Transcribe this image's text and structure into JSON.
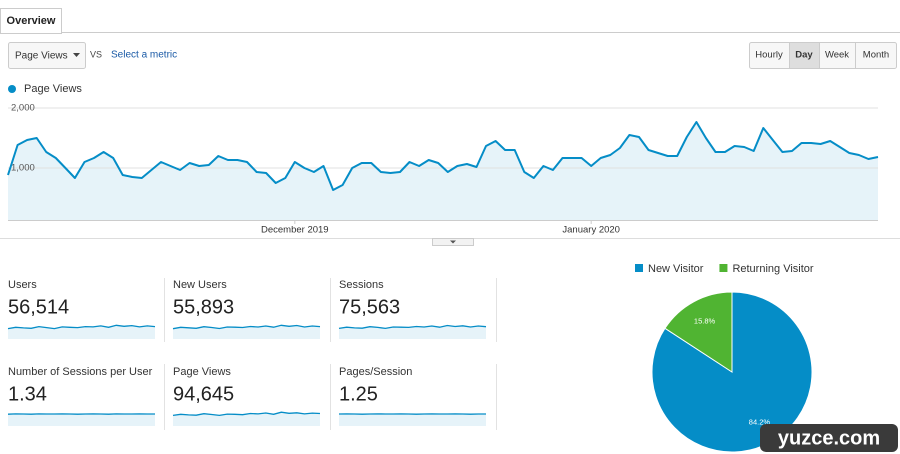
{
  "tab": "Overview",
  "controls": {
    "metric": "Page Views",
    "vs": "VS",
    "select_metric": "Select a metric",
    "periods": [
      "Hourly",
      "Day",
      "Week",
      "Month"
    ]
  },
  "chart_data": [
    {
      "type": "line",
      "series": [
        {
          "name": "Page Views",
          "color": "#058dc7",
          "values": [
            883,
            1383,
            1467,
            1500,
            1267,
            1167,
            1000,
            833,
            1100,
            1167,
            1267,
            1167,
            883,
            850,
            833,
            967,
            1100,
            1033,
            967,
            1083,
            1033,
            1050,
            1200,
            1133,
            1133,
            1100,
            933,
            917,
            750,
            833,
            1100,
            1000,
            933,
            1033,
            633,
            717,
            1000,
            1083,
            1083,
            933,
            917,
            933,
            1100,
            1033,
            1133,
            1083,
            933,
            1033,
            1067,
            1017,
            1367,
            1450,
            1300,
            1300,
            933,
            833,
            1033,
            967,
            1167,
            1167,
            1167,
            1033,
            1167,
            1217,
            1333,
            1550,
            1517,
            1300,
            1250,
            1200,
            1200,
            1517,
            1767,
            1500,
            1267,
            1267,
            1367,
            1350,
            1283,
            1667,
            1467,
            1267,
            1283,
            1417,
            1417,
            1400,
            1450,
            1350,
            1250,
            1217,
            1150,
            1183
          ]
        }
      ],
      "categories": [
        null,
        null,
        null,
        null,
        null,
        null,
        null,
        null,
        null,
        null,
        null,
        null,
        null,
        null,
        null,
        null,
        null,
        null,
        null,
        null,
        null,
        null,
        null,
        null,
        null,
        null,
        null,
        null,
        null,
        null,
        "December 2019",
        null,
        null,
        null,
        null,
        null,
        null,
        null,
        null,
        null,
        null,
        null,
        null,
        null,
        null,
        null,
        null,
        null,
        null,
        null,
        null,
        null,
        null,
        null,
        null,
        null,
        null,
        null,
        null,
        null,
        null,
        "January 2020",
        null,
        null,
        null,
        null,
        null,
        null,
        null,
        null,
        null,
        null,
        null,
        null,
        null,
        null,
        null,
        null,
        null,
        null,
        null,
        null,
        null,
        null,
        null,
        null,
        null,
        null,
        null,
        null,
        null,
        null
      ],
      "ylim": [
        133,
        2133
      ],
      "yticks": [
        {
          "value": 1000,
          "label": "1,000"
        },
        {
          "value": 2000,
          "label": "2,000"
        }
      ],
      "grid": true
    },
    {
      "type": "pie",
      "categories": [
        "New Visitor",
        "Returning Visitor"
      ],
      "values": [
        84.2,
        15.8
      ],
      "value_labels": [
        "84.2%",
        "15.8%"
      ],
      "colors": [
        "#058dc7",
        "#50b432"
      ]
    }
  ],
  "metrics": [
    {
      "name": "Users",
      "value": 56514,
      "label": "56,514",
      "sparkline": [
        560,
        600,
        580,
        570,
        620,
        590,
        560,
        610,
        600,
        590,
        620,
        610,
        640,
        600,
        660,
        630,
        650,
        610,
        640,
        620
      ]
    },
    {
      "name": "New Users",
      "value": 55893,
      "label": "55,893",
      "sparkline": [
        550,
        590,
        575,
        560,
        610,
        585,
        555,
        600,
        595,
        585,
        615,
        600,
        630,
        595,
        650,
        620,
        645,
        600,
        630,
        612
      ]
    },
    {
      "name": "Sessions",
      "value": 75563,
      "label": "75,563",
      "sparkline": [
        780,
        830,
        800,
        790,
        850,
        820,
        780,
        840,
        830,
        820,
        860,
        840,
        880,
        830,
        900,
        860,
        890,
        840,
        880,
        850
      ]
    },
    {
      "name": "Number of Sessions per User",
      "value": 1.34,
      "sparkline": [
        1.33,
        1.35,
        1.34,
        1.33,
        1.35,
        1.34,
        1.34,
        1.35,
        1.34,
        1.33,
        1.34,
        1.35,
        1.34,
        1.33,
        1.35,
        1.34,
        1.34,
        1.35,
        1.34,
        1.34
      ]
    },
    {
      "name": "Page Views",
      "value": 94645,
      "label": "94,645",
      "sparkline": [
        980,
        1040,
        1010,
        990,
        1070,
        1030,
        980,
        1050,
        1040,
        1020,
        1080,
        1060,
        1110,
        1040,
        1150,
        1090,
        1120,
        1060,
        1100,
        1080
      ]
    },
    {
      "name": "Pages/Session",
      "value": 1.25,
      "sparkline": [
        1.25,
        1.26,
        1.25,
        1.24,
        1.25,
        1.26,
        1.25,
        1.25,
        1.26,
        1.25,
        1.24,
        1.25,
        1.26,
        1.25,
        1.25,
        1.26,
        1.25,
        1.24,
        1.25,
        1.25
      ]
    }
  ],
  "watermark": "yuzce.com"
}
